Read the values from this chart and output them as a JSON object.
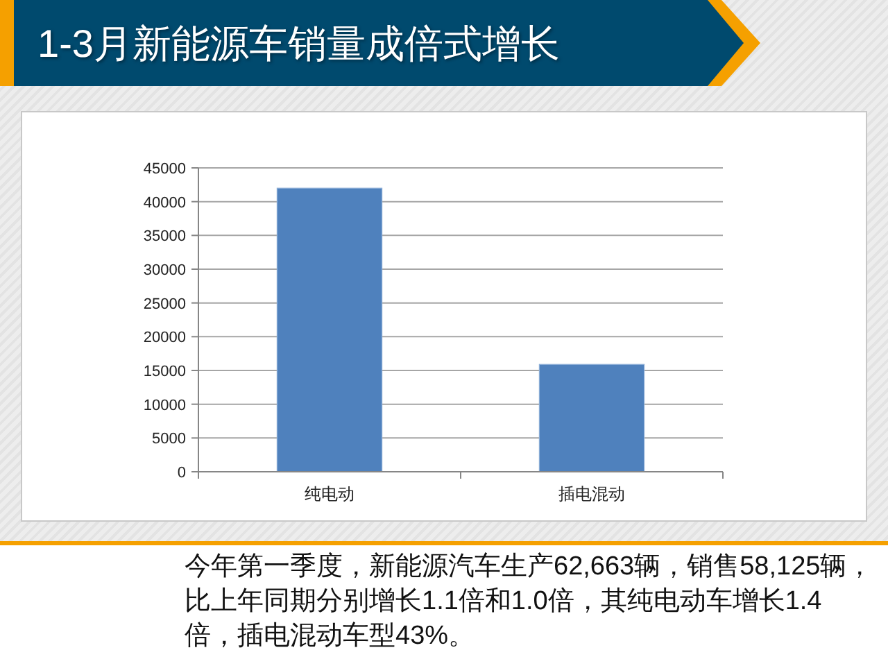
{
  "chart_data": {
    "type": "bar",
    "title": "1-3月新能源车销量成倍式增长",
    "categories": [
      "纯电动",
      "插电混动"
    ],
    "values": [
      42000,
      15900
    ],
    "color": "#4f81bd",
    "ylim": [
      0,
      45000
    ],
    "yticks": [
      0,
      5000,
      10000,
      15000,
      20000,
      25000,
      30000,
      35000,
      40000,
      45000
    ],
    "grid": "y",
    "annotations": [
      "今年第一季度，新能源汽车生产62,663辆，销售58,125辆，比上年同期分别增长1.1倍和1.0倍，其纯电动车增长1.4倍，插电混动车型43%。"
    ]
  }
}
